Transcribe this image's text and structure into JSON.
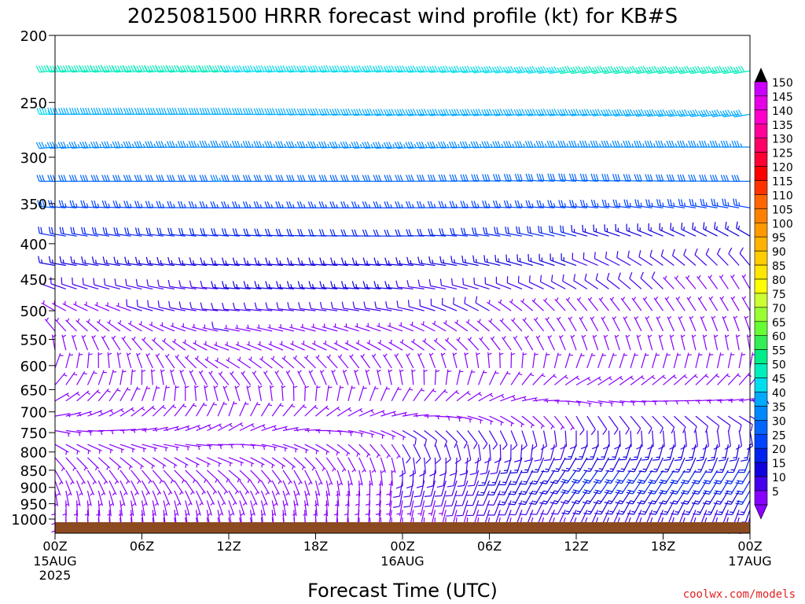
{
  "chart_data": {
    "type": "wind-profile",
    "title": "2025081500 HRRR forecast wind profile (kt) for KB#S",
    "xlabel": "Forecast Time (UTC)",
    "watermark": "coolwx.com/models",
    "x_range_hours": [
      0,
      48
    ],
    "x_ticks": [
      {
        "hour": 0,
        "label": "00Z",
        "sub": [
          "15AUG",
          "2025"
        ]
      },
      {
        "hour": 6,
        "label": "06Z",
        "sub": []
      },
      {
        "hour": 12,
        "label": "12Z",
        "sub": []
      },
      {
        "hour": 18,
        "label": "18Z",
        "sub": []
      },
      {
        "hour": 24,
        "label": "00Z",
        "sub": [
          "16AUG"
        ]
      },
      {
        "hour": 30,
        "label": "06Z",
        "sub": []
      },
      {
        "hour": 36,
        "label": "12Z",
        "sub": []
      },
      {
        "hour": 42,
        "label": "18Z",
        "sub": []
      },
      {
        "hour": 48,
        "label": "00Z",
        "sub": [
          "17AUG"
        ]
      }
    ],
    "y_axis": {
      "label": "",
      "units": "hPa",
      "scale": "log",
      "range": [
        1000,
        200
      ],
      "ticks": [
        200,
        250,
        300,
        350,
        400,
        450,
        500,
        550,
        600,
        650,
        700,
        750,
        800,
        850,
        900,
        950,
        1000
      ]
    },
    "colorbar": {
      "labels": [
        "150",
        "145",
        "140",
        "135",
        "130",
        "125",
        "120",
        "115",
        "110",
        "105",
        "100",
        "95",
        "90",
        "85",
        "80",
        "75",
        "70",
        "65",
        "60",
        "55",
        "50",
        "45",
        "40",
        "35",
        "30",
        "25",
        "20",
        "15",
        "10",
        "5"
      ],
      "colors": [
        "#cc00ff",
        "#e600e6",
        "#ff00cc",
        "#ff0099",
        "#ff0066",
        "#ff0033",
        "#ff0000",
        "#ff3300",
        "#ff6600",
        "#ff8000",
        "#ff9900",
        "#ffb300",
        "#ffcc00",
        "#ffe600",
        "#ffff00",
        "#ccff33",
        "#99ff33",
        "#66ff33",
        "#33ee55",
        "#00ee88",
        "#00eebb",
        "#00ddee",
        "#00aaff",
        "#0088ff",
        "#0066ff",
        "#0044ff",
        "#0022ee",
        "#1100dd",
        "#4400ee",
        "#8800ff"
      ],
      "top_arrow": "#000000",
      "bottom_arrow": "#8800ff"
    },
    "ground_color": "#8b4a20",
    "levels_hpa": [
      225,
      260,
      290,
      325,
      355,
      390,
      430,
      465,
      500,
      535,
      570,
      605,
      640,
      675,
      710,
      745,
      780,
      815,
      850,
      880,
      910,
      940,
      970,
      995
    ],
    "level_profiles": [
      {
        "p": 225,
        "spd": [
          50,
          50,
          48,
          50,
          52
        ],
        "dir": [
          265,
          265,
          265,
          260,
          260
        ]
      },
      {
        "p": 260,
        "spd": [
          45,
          42,
          40,
          42,
          40
        ],
        "dir": [
          270,
          270,
          265,
          265,
          260
        ]
      },
      {
        "p": 290,
        "spd": [
          38,
          38,
          36,
          35,
          38
        ],
        "dir": [
          265,
          270,
          265,
          270,
          270
        ]
      },
      {
        "p": 325,
        "spd": [
          32,
          35,
          32,
          30,
          32
        ],
        "dir": [
          270,
          270,
          270,
          275,
          270
        ]
      },
      {
        "p": 355,
        "spd": [
          30,
          28,
          28,
          26,
          28
        ],
        "dir": [
          275,
          270,
          270,
          275,
          280
        ]
      },
      {
        "p": 390,
        "spd": [
          20,
          24,
          22,
          20,
          18
        ],
        "dir": [
          280,
          275,
          270,
          285,
          300
        ]
      },
      {
        "p": 430,
        "spd": [
          15,
          18,
          18,
          15,
          10
        ],
        "dir": [
          280,
          275,
          275,
          290,
          320
        ]
      },
      {
        "p": 465,
        "spd": [
          10,
          15,
          15,
          12,
          8
        ],
        "dir": [
          290,
          275,
          275,
          300,
          330
        ]
      },
      {
        "p": 500,
        "spd": [
          8,
          12,
          12,
          8,
          8
        ],
        "dir": [
          300,
          275,
          280,
          320,
          330
        ]
      },
      {
        "p": 535,
        "spd": [
          6,
          10,
          8,
          6,
          6
        ],
        "dir": [
          320,
          280,
          290,
          330,
          340
        ]
      },
      {
        "p": 570,
        "spd": [
          6,
          8,
          6,
          6,
          6
        ],
        "dir": [
          350,
          290,
          300,
          340,
          350
        ]
      },
      {
        "p": 605,
        "spd": [
          5,
          8,
          6,
          6,
          6
        ],
        "dir": [
          20,
          300,
          330,
          20,
          10
        ]
      },
      {
        "p": 640,
        "spd": [
          6,
          8,
          6,
          6,
          8
        ],
        "dir": [
          40,
          320,
          350,
          60,
          40
        ]
      },
      {
        "p": 675,
        "spd": [
          8,
          6,
          6,
          8,
          10
        ],
        "dir": [
          60,
          340,
          30,
          100,
          80
        ]
      },
      {
        "p": 710,
        "spd": [
          8,
          6,
          8,
          10,
          12
        ],
        "dir": [
          80,
          20,
          80,
          150,
          120
        ]
      },
      {
        "p": 745,
        "spd": [
          8,
          8,
          10,
          12,
          15
        ],
        "dir": [
          100,
          60,
          120,
          180,
          170
        ]
      },
      {
        "p": 780,
        "spd": [
          8,
          8,
          10,
          15,
          18
        ],
        "dir": [
          120,
          90,
          150,
          200,
          190
        ]
      },
      {
        "p": 815,
        "spd": [
          8,
          8,
          10,
          18,
          20
        ],
        "dir": [
          140,
          110,
          170,
          210,
          200
        ]
      },
      {
        "p": 850,
        "spd": [
          8,
          6,
          10,
          20,
          22
        ],
        "dir": [
          150,
          130,
          180,
          215,
          210
        ]
      },
      {
        "p": 880,
        "spd": [
          6,
          6,
          10,
          20,
          22
        ],
        "dir": [
          160,
          140,
          190,
          215,
          210
        ]
      },
      {
        "p": 910,
        "spd": [
          6,
          5,
          10,
          18,
          20
        ],
        "dir": [
          170,
          150,
          190,
          215,
          210
        ]
      },
      {
        "p": 940,
        "spd": [
          5,
          5,
          8,
          15,
          18
        ],
        "dir": [
          180,
          160,
          190,
          210,
          205
        ]
      },
      {
        "p": 970,
        "spd": [
          5,
          5,
          8,
          12,
          15
        ],
        "dir": [
          180,
          170,
          190,
          205,
          200
        ]
      },
      {
        "p": 995,
        "spd": [
          5,
          5,
          6,
          10,
          12
        ],
        "dir": [
          180,
          170,
          180,
          200,
          195
        ]
      }
    ]
  }
}
